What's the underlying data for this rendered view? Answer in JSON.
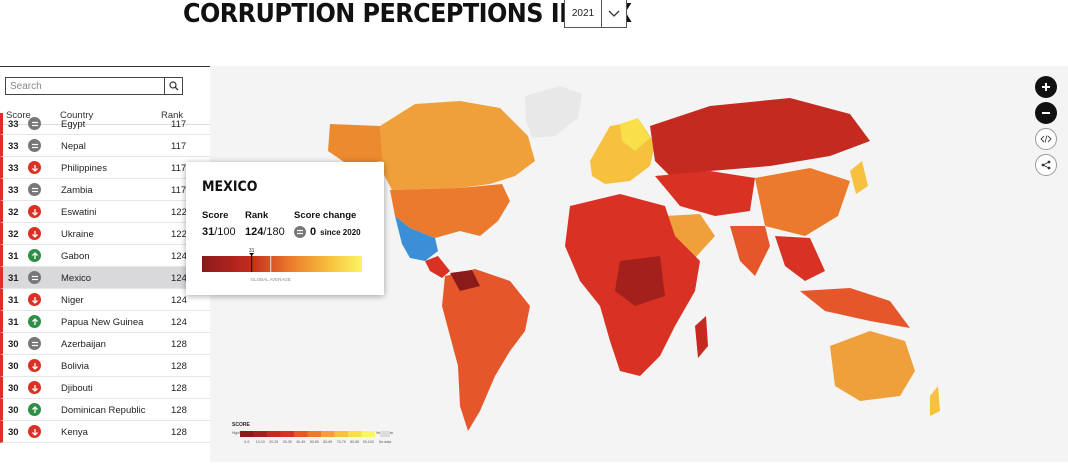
{
  "header": {
    "title": "CORRUPTION PERCEPTIONS INDEX",
    "year": "2021"
  },
  "sidebar": {
    "search_placeholder": "Search",
    "columns": {
      "score": "Score",
      "country": "Country",
      "rank": "Rank"
    },
    "rows": [
      {
        "score": "33",
        "trend": "same",
        "country": "Egypt",
        "rank": "117",
        "selected": false
      },
      {
        "score": "33",
        "trend": "same",
        "country": "Nepal",
        "rank": "117",
        "selected": false
      },
      {
        "score": "33",
        "trend": "down",
        "country": "Philippines",
        "rank": "117",
        "selected": false
      },
      {
        "score": "33",
        "trend": "same",
        "country": "Zambia",
        "rank": "117",
        "selected": false
      },
      {
        "score": "32",
        "trend": "down",
        "country": "Eswatini",
        "rank": "122",
        "selected": false
      },
      {
        "score": "32",
        "trend": "down",
        "country": "Ukraine",
        "rank": "122",
        "selected": false
      },
      {
        "score": "31",
        "trend": "up",
        "country": "Gabon",
        "rank": "124",
        "selected": false
      },
      {
        "score": "31",
        "trend": "same",
        "country": "Mexico",
        "rank": "124",
        "selected": true
      },
      {
        "score": "31",
        "trend": "down",
        "country": "Niger",
        "rank": "124",
        "selected": false
      },
      {
        "score": "31",
        "trend": "up",
        "country": "Papua New Guinea",
        "rank": "124",
        "selected": false
      },
      {
        "score": "30",
        "trend": "same",
        "country": "Azerbaijan",
        "rank": "128",
        "selected": false
      },
      {
        "score": "30",
        "trend": "down",
        "country": "Bolivia",
        "rank": "128",
        "selected": false
      },
      {
        "score": "30",
        "trend": "down",
        "country": "Djibouti",
        "rank": "128",
        "selected": false
      },
      {
        "score": "30",
        "trend": "up",
        "country": "Dominican Republic",
        "rank": "128",
        "selected": false
      },
      {
        "score": "30",
        "trend": "down",
        "country": "Kenya",
        "rank": "128",
        "selected": false
      }
    ]
  },
  "popup": {
    "country": "MEXICO",
    "score_label": "Score",
    "score_value": "31",
    "score_total": "/100",
    "rank_label": "Rank",
    "rank_value": "124",
    "rank_total": "/180",
    "change_label": "Score change",
    "change_value": "0",
    "change_since": "since 2020",
    "marker_value": "31",
    "marker_fraction": 0.31,
    "global_average_fraction": 0.43,
    "global_average_label": "GLOBAL AVERAGE"
  },
  "map_controls": {
    "zoom_in": "zoom-in-icon",
    "zoom_out": "zoom-out-icon",
    "embed": "code-icon",
    "share": "share-icon"
  },
  "legend": {
    "title": "SCORE",
    "low_label": "Highly Corrupt",
    "high_label": "Very Clean",
    "ranges": [
      "0-9",
      "10-19",
      "20-29",
      "30-39",
      "40-49",
      "50-59",
      "60-69",
      "70-79",
      "80-89",
      "90-100"
    ],
    "no_data": "No data",
    "colors": [
      "#8b1a1a",
      "#a3201c",
      "#c42a1f",
      "#d93224",
      "#e5562a",
      "#ec7a2c",
      "#f0a03a",
      "#f6c13e",
      "#f9e04a",
      "#fbf563"
    ]
  },
  "colors": {
    "highlight_blue": "#3b8fd6",
    "selected_row": "#d9d9dc",
    "trend_up": "#2f8f46",
    "trend_down": "#d93224",
    "trend_same": "#777777"
  }
}
